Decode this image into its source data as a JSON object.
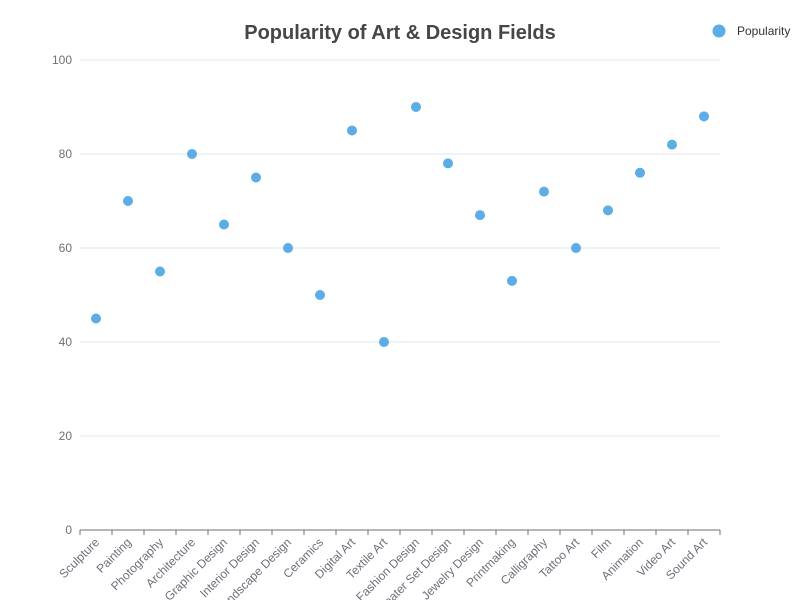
{
  "chart_data": {
    "type": "scatter",
    "title": "Popularity of Art & Design Fields",
    "xlabel": "",
    "ylabel": "",
    "categories": [
      "Sculpture",
      "Painting",
      "Photography",
      "Architecture",
      "Graphic Design",
      "Interior Design",
      "Landscape Design",
      "Ceramics",
      "Digital Art",
      "Textile Art",
      "Fashion Design",
      "Theater Set Design",
      "Jewelry Design",
      "Printmaking",
      "Calligraphy",
      "Tattoo Art",
      "Film",
      "Animation",
      "Video Art",
      "Sound Art"
    ],
    "series": [
      {
        "name": "Popularity",
        "values": [
          45,
          70,
          55,
          80,
          65,
          75,
          60,
          50,
          85,
          40,
          90,
          78,
          67,
          53,
          72,
          60,
          68,
          76,
          82,
          88
        ]
      }
    ],
    "ylim": [
      0,
      100
    ],
    "yticks": [
      0,
      20,
      40,
      60,
      80,
      100
    ],
    "grid": true,
    "legend_position": "top-right",
    "colors": {
      "point": "#5aaee5",
      "grid": "#e0e6f1",
      "axis": "#6e7079"
    }
  }
}
